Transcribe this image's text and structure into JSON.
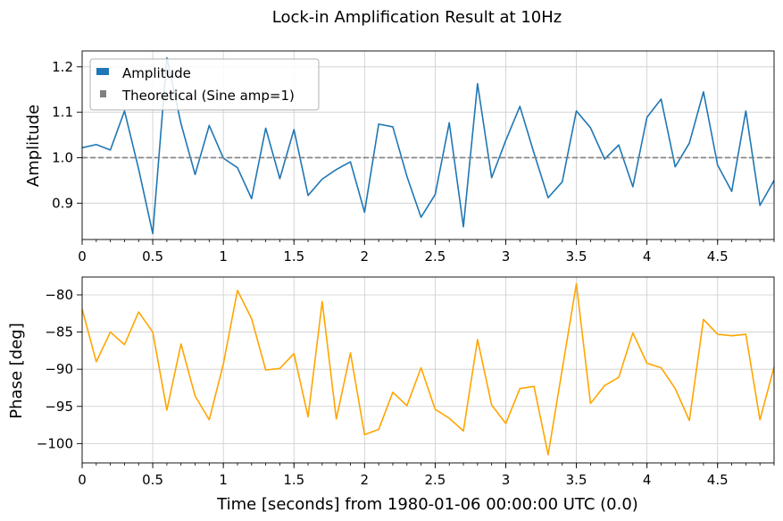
{
  "chart_data": {
    "title": "Lock-in Amplification Result at 10Hz",
    "x": [
      0.0,
      0.1,
      0.2,
      0.3,
      0.4,
      0.5,
      0.6,
      0.7,
      0.8,
      0.9,
      1.0,
      1.1,
      1.2,
      1.3,
      1.4,
      1.5,
      1.6,
      1.7,
      1.8,
      1.9,
      2.0,
      2.1,
      2.2,
      2.3,
      2.4,
      2.5,
      2.6,
      2.7,
      2.8,
      2.9,
      3.0,
      3.1,
      3.2,
      3.3,
      3.4,
      3.5,
      3.6,
      3.7,
      3.8,
      3.9,
      4.0,
      4.1,
      4.2,
      4.3,
      4.4,
      4.5,
      4.6,
      4.7,
      4.8,
      4.9
    ],
    "xlabel": "Time [seconds] from 1980-01-06 00:00:00 UTC (0.0)",
    "xlim": [
      0,
      4.9
    ],
    "x_ticks": [
      "0",
      "0.5",
      "1",
      "1.5",
      "2",
      "2.5",
      "3",
      "3.5",
      "4",
      "4.5"
    ],
    "grid": true,
    "panels": [
      {
        "type": "line",
        "ylabel": "Amplitude",
        "ylim": [
          0.82,
          1.235
        ],
        "y_ticks": [
          "0.9",
          "1.0",
          "1.1",
          "1.2"
        ],
        "legend_position": "upper-left",
        "series": [
          {
            "name": "Amplitude",
            "color": "#1f77b4",
            "values": [
              1.022,
              1.029,
              1.017,
              1.103,
              0.975,
              0.833,
              1.22,
              1.075,
              0.963,
              1.071,
              0.999,
              0.978,
              0.91,
              1.065,
              0.954,
              1.062,
              0.917,
              0.953,
              0.974,
              0.991,
              0.88,
              1.074,
              1.068,
              0.959,
              0.869,
              0.919,
              1.077,
              0.848,
              1.163,
              0.956,
              1.038,
              1.113,
              1.01,
              0.912,
              0.947,
              1.103,
              1.066,
              0.997,
              1.028,
              0.936,
              1.089,
              1.129,
              0.98,
              1.032,
              1.145,
              0.984,
              0.926,
              1.103,
              0.895,
              0.95
            ]
          },
          {
            "name": "Theoretical (Sine amp=1)",
            "color": "#808080",
            "style": "dashed",
            "values": [
              1,
              1,
              1,
              1,
              1,
              1,
              1,
              1,
              1,
              1,
              1,
              1,
              1,
              1,
              1,
              1,
              1,
              1,
              1,
              1,
              1,
              1,
              1,
              1,
              1,
              1,
              1,
              1,
              1,
              1,
              1,
              1,
              1,
              1,
              1,
              1,
              1,
              1,
              1,
              1,
              1,
              1,
              1,
              1,
              1,
              1,
              1,
              1,
              1,
              1
            ]
          }
        ]
      },
      {
        "type": "line",
        "ylabel": "Phase [deg]",
        "ylim": [
          -102.6,
          -77.6
        ],
        "y_ticks": [
          "−80",
          "−85",
          "−90",
          "−95",
          "−100"
        ],
        "series": [
          {
            "color": "#ffa500",
            "values": [
              -81.9,
              -89.0,
              -85.0,
              -86.7,
              -82.3,
              -85.0,
              -95.5,
              -86.6,
              -93.6,
              -96.8,
              -89.3,
              -79.4,
              -83.2,
              -90.1,
              -89.9,
              -87.9,
              -96.4,
              -80.9,
              -96.7,
              -87.8,
              -98.8,
              -98.1,
              -93.1,
              -94.9,
              -89.8,
              -95.4,
              -96.6,
              -98.3,
              -86.0,
              -94.8,
              -97.3,
              -92.6,
              -92.3,
              -101.5,
              -90.0,
              -78.5,
              -94.6,
              -92.2,
              -91.1,
              -85.1,
              -89.2,
              -89.8,
              -92.6,
              -96.9,
              -83.3,
              -85.3,
              -85.5,
              -85.3,
              -96.8,
              -89.7
            ]
          }
        ]
      }
    ]
  }
}
